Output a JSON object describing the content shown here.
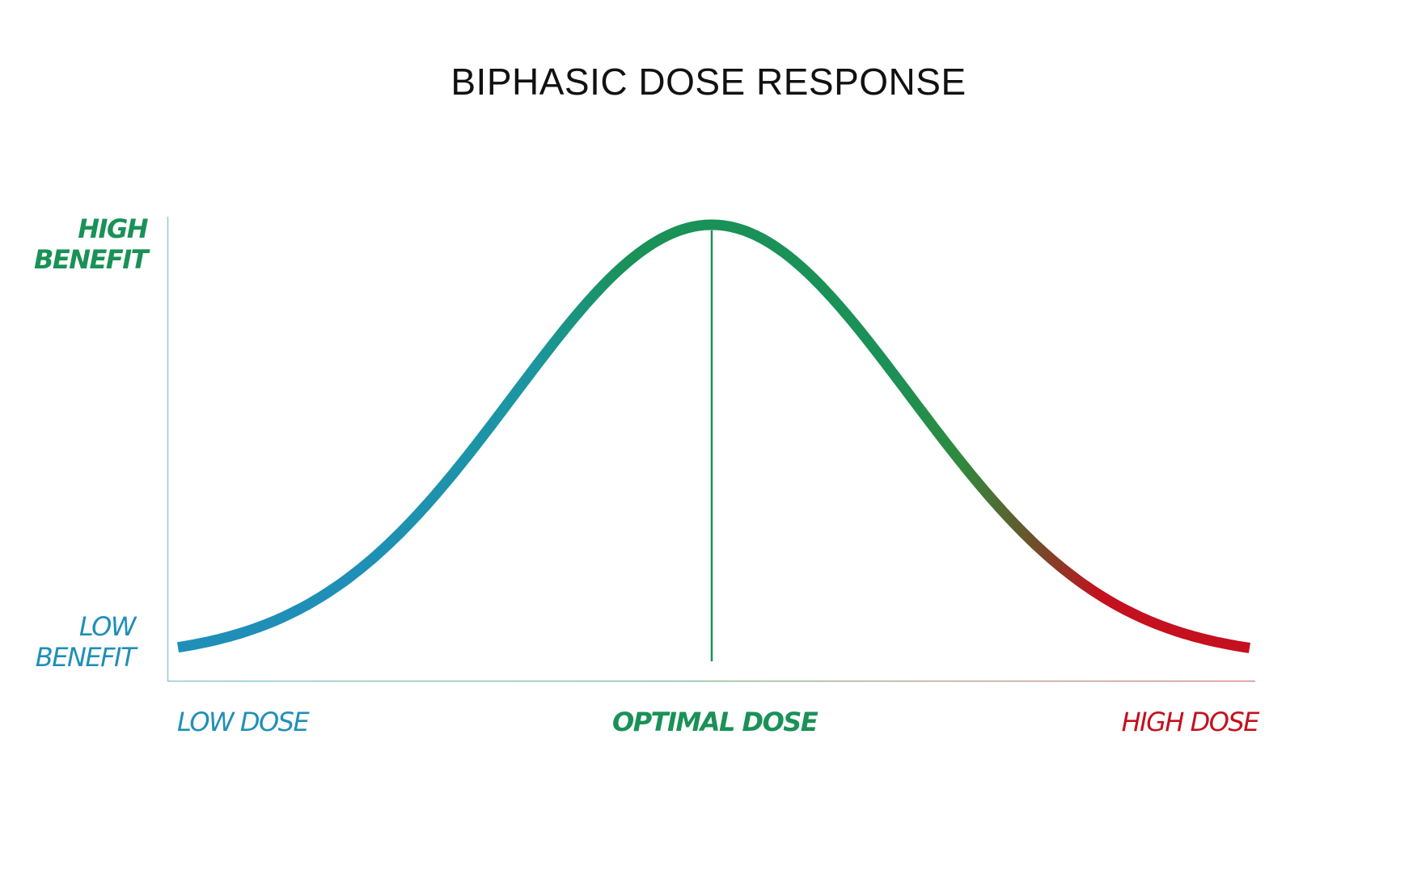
{
  "title": "BIPHASIC DOSE RESPONSE",
  "y_axis": {
    "high_label_line1": "HIGH",
    "high_label_line2": "BENEFIT",
    "low_label_line1": "LOW",
    "low_label_line2": "BENEFIT"
  },
  "x_axis": {
    "low_label": "LOW DOSE",
    "optimal_label": "OPTIMAL DOSE",
    "high_label": "HIGH DOSE"
  },
  "colors": {
    "low": "#1f8fb8",
    "optimal": "#1a9157",
    "high": "#c4101f",
    "axis_y": "#8fc9d3",
    "title": "#111111"
  }
}
